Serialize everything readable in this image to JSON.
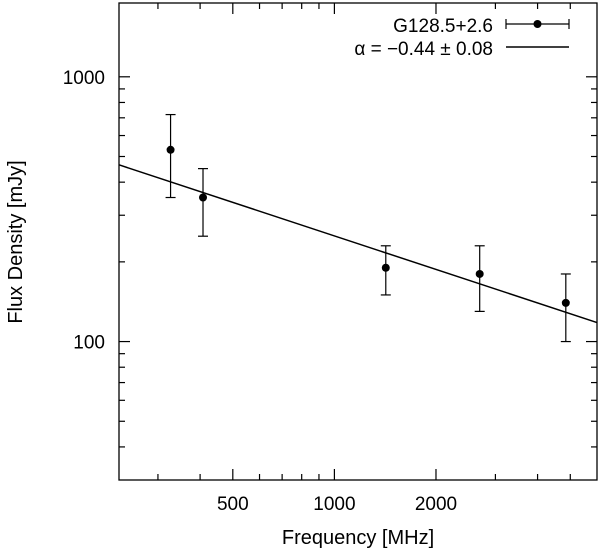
{
  "chart_data": {
    "type": "scatter",
    "xscale": "log",
    "yscale": "log",
    "xlabel": "Frequency [MHz]",
    "ylabel": "Flux Density [mJy]",
    "xlim": [
      230,
      6000
    ],
    "ylim": [
      30,
      1900
    ],
    "xticks": [
      {
        "value": 500,
        "label": "500"
      },
      {
        "value": 1000,
        "label": "1000"
      },
      {
        "value": 2000,
        "label": "2000"
      }
    ],
    "yticks": [
      {
        "value": 100,
        "label": "100"
      },
      {
        "value": 1000,
        "label": "1000"
      }
    ],
    "series": [
      {
        "name": "G128.5+2.6",
        "kind": "points_with_errorbars",
        "x": [
          327,
          408,
          1420,
          2695,
          4850
        ],
        "y": [
          530,
          350,
          190,
          180,
          140
        ],
        "yerr_low": [
          350,
          250,
          150,
          130,
          100
        ],
        "yerr_high": [
          720,
          450,
          230,
          230,
          180
        ]
      },
      {
        "name": "α = −0.44 ± 0.08",
        "kind": "power_law_fit",
        "alpha": -0.44,
        "alpha_err": 0.08,
        "x_range": [
          230,
          6000
        ],
        "y_at_x_range": [
          465,
          118
        ]
      }
    ],
    "legend": {
      "position": "top-right",
      "entries": [
        "G128.5+2.6",
        "α = −0.44 ± 0.08"
      ]
    },
    "grid": false
  }
}
